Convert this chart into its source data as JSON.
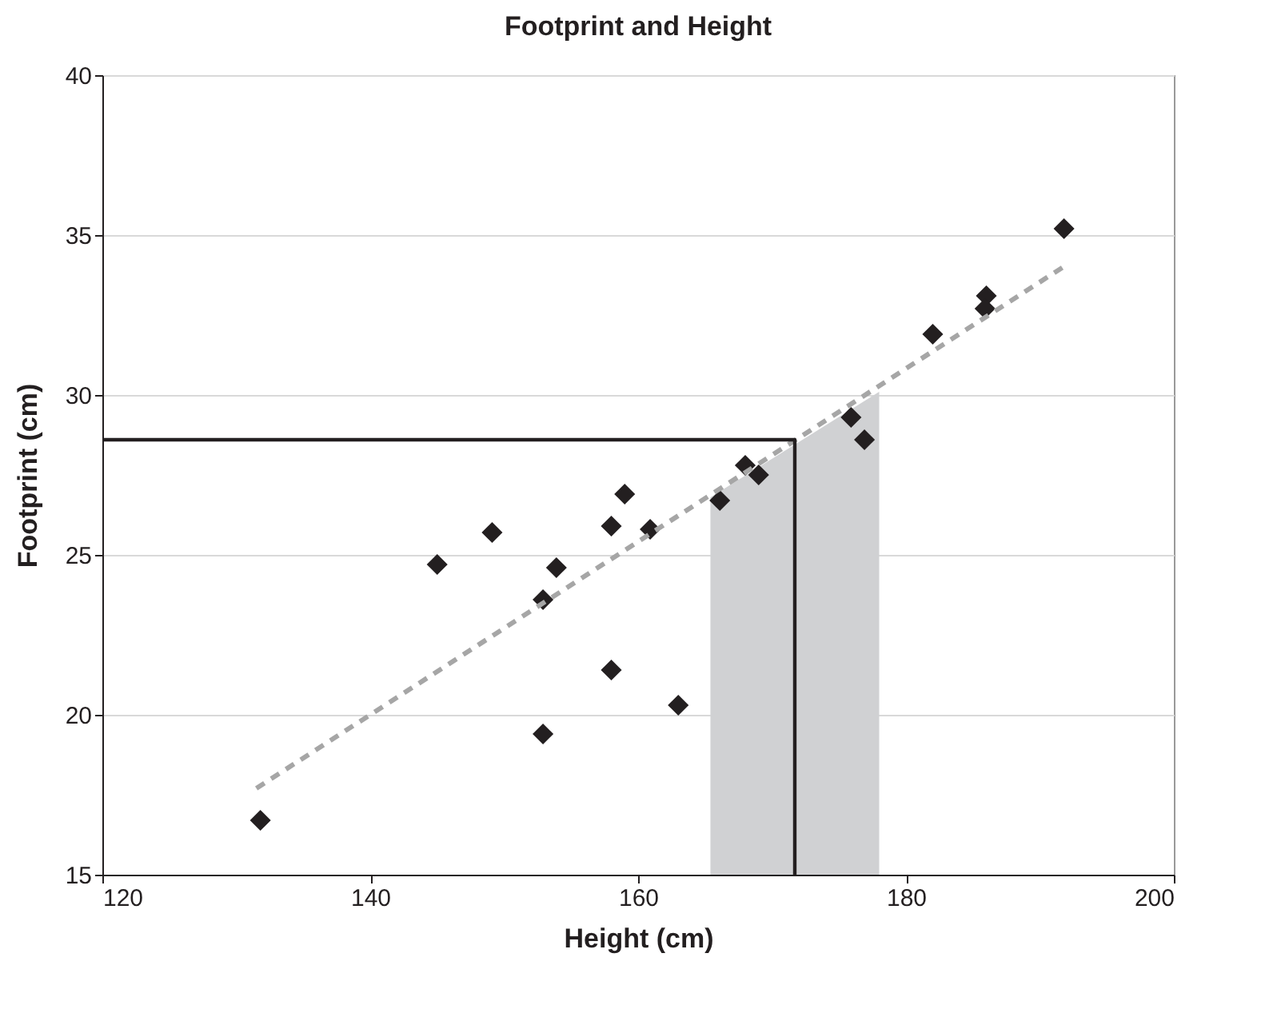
{
  "chart_data": {
    "type": "scatter",
    "title": "Footprint and Height",
    "xlabel": "Height (cm)",
    "ylabel": "Footprint (cm)",
    "xlim": [
      120,
      200
    ],
    "xticks": [
      120,
      140,
      160,
      180,
      200
    ],
    "ylim": [
      15,
      40
    ],
    "yticks": [
      15,
      20,
      25,
      30,
      35,
      40
    ],
    "grid": "y",
    "series": [
      {
        "type": "area",
        "color": "#d0d1d3",
        "x": [
          165.4,
          178
        ],
        "values": [
          26.8,
          30.1
        ]
      },
      {
        "marker": "diamond",
        "color": "#231f20",
        "x": [
          131.8,
          145,
          149.1,
          152.9,
          153.9,
          152.9,
          158,
          159,
          158,
          160.9,
          163,
          166.1,
          168,
          169,
          175.9,
          176.9,
          182,
          186,
          185.9,
          191.8
        ],
        "values": [
          16.7,
          24.7,
          25.7,
          23.6,
          24.6,
          19.4,
          25.9,
          26.9,
          21.4,
          25.8,
          20.3,
          26.7,
          27.8,
          27.5,
          29.3,
          28.6,
          31.9,
          33.1,
          32.7,
          35.2
        ]
      },
      {
        "type": "line",
        "color": "#a6a6a6",
        "line_style": "dashed",
        "x": [
          131.5,
          192.1
        ],
        "values": [
          17.7,
          34.1
        ]
      },
      {
        "type": "line",
        "color": "#231f20",
        "line_style": "solid",
        "x": [
          120,
          171.7,
          171.7
        ],
        "values": [
          28.6,
          28.6,
          15
        ]
      }
    ]
  }
}
